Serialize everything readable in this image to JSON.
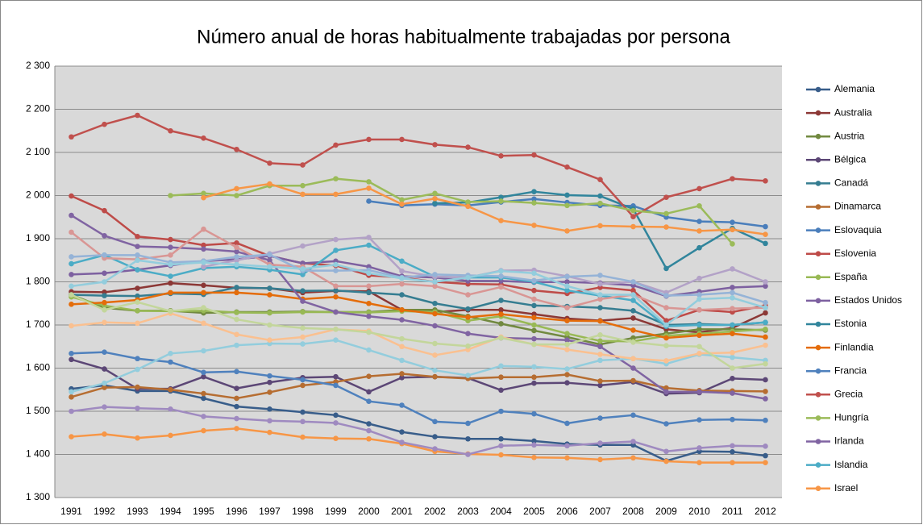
{
  "chart_data": {
    "type": "line",
    "title": "Número anual de horas habitualmente trabajadas por persona",
    "categories": [
      "1991",
      "1992",
      "1993",
      "1994",
      "1995",
      "1996",
      "1997",
      "1998",
      "1999",
      "2000",
      "2001",
      "2002",
      "2003",
      "2004",
      "2005",
      "2006",
      "2007",
      "2008",
      "2009",
      "2010",
      "2011",
      "2012"
    ],
    "ylim": [
      1300,
      2300
    ],
    "yticks": [
      {
        "value": 1300,
        "label": "1 300"
      },
      {
        "value": 1400,
        "label": "1 400"
      },
      {
        "value": 1500,
        "label": "1 500"
      },
      {
        "value": 1600,
        "label": "1 600"
      },
      {
        "value": 1700,
        "label": "1 700"
      },
      {
        "value": 1800,
        "label": "1 800"
      },
      {
        "value": 1900,
        "label": "1 900"
      },
      {
        "value": 2000,
        "label": "2 000"
      },
      {
        "value": 2100,
        "label": "2 100"
      },
      {
        "value": 2200,
        "label": "2 200"
      },
      {
        "value": 2300,
        "label": "2 300"
      }
    ],
    "grid": true,
    "series": [
      {
        "name": "Alemania",
        "color": "#385d8a",
        "values": [
          1552,
          1560,
          1547,
          1547,
          1530,
          1511,
          1505,
          1498,
          1491,
          1471,
          1452,
          1441,
          1436,
          1436,
          1431,
          1424,
          1422,
          1422,
          1385,
          1407,
          1406,
          1397
        ]
      },
      {
        "name": "Australia",
        "color": "#8c3836",
        "values": [
          1777,
          1776,
          1785,
          1797,
          1792,
          1786,
          1785,
          1775,
          1779,
          1778,
          1735,
          1730,
          1735,
          1735,
          1725,
          1715,
          1710,
          1716,
          1690,
          1683,
          1693,
          1728
        ]
      },
      {
        "name": "Austria",
        "color": "#71893f",
        "values": [
          1770,
          1740,
          1733,
          1733,
          1728,
          1730,
          1730,
          1731,
          1730,
          1730,
          1735,
          1735,
          1720,
          1703,
          1687,
          1672,
          1655,
          1670,
          1680,
          1690,
          1690,
          1688
        ]
      },
      {
        "name": "Bélgica",
        "color": "#5c4776",
        "values": [
          1620,
          1598,
          1552,
          1552,
          1580,
          1553,
          1567,
          1578,
          1580,
          1545,
          1578,
          1580,
          1577,
          1549,
          1565,
          1566,
          1560,
          1568,
          1541,
          1543,
          1576,
          1573
        ]
      },
      {
        "name": "Canadá",
        "color": "#357d91",
        "values": [
          1770,
          1768,
          1767,
          1773,
          1771,
          1787,
          1785,
          1779,
          1780,
          1775,
          1770,
          1750,
          1737,
          1757,
          1745,
          1743,
          1740,
          1733,
          1700,
          1702,
          1700,
          1706
        ]
      },
      {
        "name": "Dinamarca",
        "color": "#b66d31",
        "values": [
          1533,
          1555,
          1556,
          1550,
          1541,
          1530,
          1544,
          1560,
          1568,
          1581,
          1587,
          1580,
          1576,
          1579,
          1579,
          1585,
          1570,
          1571,
          1554,
          1548,
          1547,
          1546
        ]
      },
      {
        "name": "Eslovaquia",
        "color": "#4a7ebb",
        "values": [
          null,
          null,
          null,
          null,
          null,
          null,
          null,
          null,
          null,
          1987,
          1977,
          1980,
          1977,
          1985,
          1992,
          1984,
          1977,
          1976,
          1950,
          1940,
          1938,
          1928
        ]
      },
      {
        "name": "Eslovenia",
        "color": "#be4b48",
        "values": [
          1999,
          1965,
          1905,
          1898,
          1885,
          1890,
          1860,
          1843,
          1838,
          1815,
          1810,
          1800,
          1795,
          1794,
          1780,
          1773,
          1787,
          1780,
          1710,
          1735,
          1730,
          1745
        ]
      },
      {
        "name": "España",
        "color": "#98b954",
        "values": [
          1765,
          1745,
          1733,
          1732,
          1733,
          1729,
          1728,
          1730,
          1730,
          1729,
          1732,
          1730,
          1710,
          1720,
          1700,
          1680,
          1663,
          1662,
          1675,
          1680,
          1685,
          1690
        ]
      },
      {
        "name": "Estados Unidos",
        "color": "#7d60a0",
        "values": [
          1817,
          1820,
          1828,
          1838,
          1848,
          1852,
          1860,
          1843,
          1848,
          1835,
          1813,
          1810,
          1802,
          1802,
          1799,
          1800,
          1797,
          1792,
          1767,
          1777,
          1787,
          1790
        ]
      },
      {
        "name": "Estonia",
        "color": "#31859c",
        "values": [
          null,
          null,
          null,
          null,
          null,
          null,
          null,
          null,
          null,
          null,
          null,
          1982,
          1984,
          1996,
          2009,
          2001,
          1999,
          1969,
          1831,
          1879,
          1924,
          1889
        ]
      },
      {
        "name": "Finlandia",
        "color": "#e46c0a",
        "values": [
          1748,
          1752,
          1758,
          1775,
          1775,
          1775,
          1770,
          1760,
          1765,
          1750,
          1735,
          1726,
          1718,
          1725,
          1717,
          1710,
          1709,
          1688,
          1670,
          1676,
          1680,
          1672
        ]
      },
      {
        "name": "Francia",
        "color": "#4f81bd",
        "values": [
          1634,
          1637,
          1622,
          1614,
          1590,
          1592,
          1582,
          1573,
          1560,
          1523,
          1514,
          1476,
          1472,
          1500,
          1494,
          1472,
          1484,
          1491,
          1471,
          1480,
          1481,
          1479
        ]
      },
      {
        "name": "Grecia",
        "color": "#c0504d",
        "values": [
          2136,
          2165,
          2186,
          2150,
          2133,
          2107,
          2075,
          2071,
          2117,
          2130,
          2130,
          2118,
          2112,
          2092,
          2094,
          2066,
          2037,
          1951,
          1996,
          2016,
          2039,
          2034
        ]
      },
      {
        "name": "Hungría",
        "color": "#9bbb59",
        "values": [
          null,
          null,
          null,
          2000,
          2005,
          2000,
          2023,
          2023,
          2039,
          2032,
          1990,
          2005,
          1985,
          1987,
          1983,
          1977,
          1982,
          1965,
          1958,
          1976,
          1888,
          null
        ]
      },
      {
        "name": "Irlanda",
        "color": "#8064a2",
        "values": [
          1954,
          1907,
          1882,
          1880,
          1876,
          1870,
          1850,
          1755,
          1730,
          1720,
          1712,
          1698,
          1680,
          1670,
          1668,
          1665,
          1650,
          1600,
          1545,
          1545,
          1542,
          1529
        ]
      },
      {
        "name": "Islandia",
        "color": "#4bacc6",
        "values": [
          1842,
          1862,
          1828,
          1813,
          1832,
          1835,
          1828,
          1817,
          1873,
          1885,
          1848,
          1812,
          1810,
          1810,
          1800,
          1780,
          1768,
          1757,
          1697,
          1700,
          1700,
          1706
        ]
      },
      {
        "name": "Israel",
        "color": "#f79646",
        "values": [
          null,
          null,
          null,
          null,
          1995,
          2016,
          2027,
          2003,
          2003,
          2017,
          1980,
          1993,
          1975,
          1942,
          1931,
          1918,
          1930,
          1928,
          1927,
          1918,
          1921,
          1910
        ]
      },
      {
        "color": "#f79646",
        "values": [
          1441,
          1447,
          1438,
          1444,
          1455,
          1460,
          1451,
          1440,
          1437,
          1436,
          1425,
          1407,
          1401,
          1399,
          1393,
          1392,
          1388,
          1392,
          1384,
          1381,
          1381,
          1381
        ]
      },
      {
        "color": "#9f8ac0",
        "values": [
          1500,
          1510,
          1507,
          1505,
          1488,
          1483,
          1478,
          1476,
          1473,
          1455,
          1428,
          1413,
          1400,
          1420,
          1422,
          1420,
          1426,
          1430,
          1407,
          1415,
          1420,
          1419
        ]
      },
      {
        "color": "#93cddd",
        "values": [
          1545,
          1565,
          1597,
          1634,
          1640,
          1653,
          1657,
          1656,
          1665,
          1642,
          1618,
          1595,
          1583,
          1605,
          1603,
          1598,
          1618,
          1622,
          1610,
          1632,
          1625,
          1618
        ]
      },
      {
        "color": "#fac090",
        "values": [
          1698,
          1706,
          1704,
          1727,
          1704,
          1678,
          1665,
          1672,
          1690,
          1686,
          1650,
          1630,
          1643,
          1672,
          1655,
          1643,
          1632,
          1622,
          1617,
          1634,
          1636,
          1653
        ]
      },
      {
        "color": "#c3d69b",
        "values": [
          1770,
          1735,
          1753,
          1732,
          1740,
          1713,
          1700,
          1693,
          1690,
          1683,
          1668,
          1657,
          1651,
          1670,
          1655,
          1655,
          1677,
          1660,
          1652,
          1650,
          1600,
          1610
        ]
      },
      {
        "color": "#d99694",
        "values": [
          1915,
          1855,
          1852,
          1862,
          1922,
          1880,
          1840,
          1835,
          1790,
          1790,
          1795,
          1790,
          1770,
          1788,
          1760,
          1740,
          1760,
          1770,
          1740,
          1735,
          1738,
          1740
        ]
      },
      {
        "color": "#b3a2c7",
        "values": [
          null,
          null,
          null,
          null,
          1835,
          1850,
          1865,
          1883,
          1898,
          1903,
          1825,
          1812,
          1810,
          1826,
          1827,
          1813,
          1795,
          1800,
          1775,
          1808,
          1830,
          1800
        ]
      },
      {
        "color": "#95b3d7",
        "values": [
          1858,
          1862,
          1862,
          1845,
          1848,
          1858,
          1863,
          1826,
          1826,
          1827,
          1810,
          1817,
          1815,
          1813,
          1803,
          1812,
          1815,
          1800,
          1768,
          1770,
          1775,
          1752
        ]
      },
      {
        "color": "#93cddd",
        "values": [
          1790,
          1800,
          1850,
          1840,
          1845,
          1840,
          1835,
          1830,
          1840,
          1820,
          1808,
          1800,
          1810,
          1825,
          1820,
          1790,
          1770,
          1770,
          1700,
          1760,
          1763,
          1740
        ]
      }
    ]
  }
}
